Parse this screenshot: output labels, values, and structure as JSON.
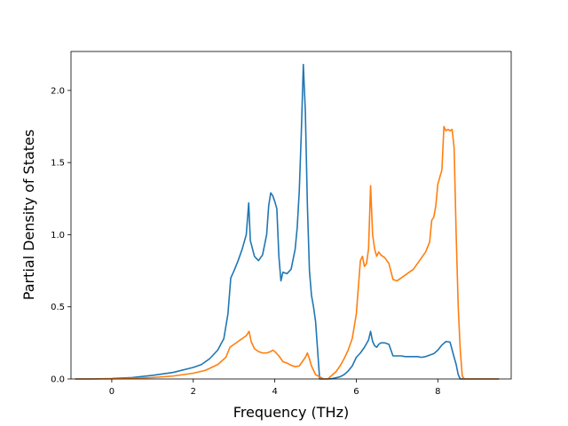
{
  "chart_data": {
    "type": "line",
    "title": "",
    "xlabel": "Frequency (THz)",
    "ylabel": "Partial Density of States",
    "xlim": [
      -1.0,
      9.8
    ],
    "ylim": [
      0.0,
      2.27
    ],
    "xticks": [
      0,
      2,
      4,
      6,
      8
    ],
    "xtick_labels": [
      "0",
      "2",
      "4",
      "6",
      "8"
    ],
    "yticks": [
      0.0,
      0.5,
      1.0,
      1.5,
      2.0
    ],
    "ytick_labels": [
      "0.0",
      "0.5",
      "1.0",
      "1.5",
      "2.0"
    ],
    "grid": false,
    "series": [
      {
        "color": "#1f77b4",
        "x": [
          -0.9,
          -0.5,
          0.0,
          0.5,
          1.0,
          1.5,
          2.0,
          2.2,
          2.4,
          2.6,
          2.75,
          2.85,
          2.92,
          3.0,
          3.1,
          3.2,
          3.3,
          3.36,
          3.4,
          3.5,
          3.6,
          3.7,
          3.8,
          3.85,
          3.9,
          3.95,
          4.0,
          4.05,
          4.1,
          4.15,
          4.2,
          4.3,
          4.4,
          4.5,
          4.55,
          4.6,
          4.65,
          4.7,
          4.75,
          4.8,
          4.85,
          4.9,
          4.95,
          5.0,
          5.1,
          5.2,
          5.24,
          5.3,
          5.4,
          5.5,
          5.6,
          5.7,
          5.8,
          5.9,
          6.0,
          6.1,
          6.2,
          6.3,
          6.35,
          6.4,
          6.45,
          6.5,
          6.55,
          6.6,
          6.7,
          6.8,
          6.9,
          7.0,
          7.05,
          7.1,
          7.2,
          7.3,
          7.4,
          7.5,
          7.6,
          7.7,
          7.8,
          7.9,
          8.0,
          8.1,
          8.2,
          8.3,
          8.4,
          8.45,
          8.5,
          8.55,
          8.6,
          8.7,
          9.0,
          9.5
        ],
        "y": [
          0.0,
          0.0,
          0.003,
          0.01,
          0.025,
          0.045,
          0.08,
          0.1,
          0.14,
          0.2,
          0.28,
          0.45,
          0.7,
          0.75,
          0.82,
          0.9,
          1.0,
          1.22,
          0.96,
          0.85,
          0.82,
          0.86,
          1.0,
          1.2,
          1.29,
          1.27,
          1.23,
          1.18,
          0.85,
          0.68,
          0.74,
          0.73,
          0.76,
          0.9,
          1.05,
          1.3,
          1.7,
          2.18,
          1.85,
          1.2,
          0.75,
          0.58,
          0.5,
          0.4,
          0.0,
          0.0,
          0.0,
          0.0,
          0.002,
          0.008,
          0.015,
          0.03,
          0.055,
          0.09,
          0.15,
          0.18,
          0.22,
          0.27,
          0.33,
          0.26,
          0.23,
          0.22,
          0.24,
          0.25,
          0.25,
          0.24,
          0.16,
          0.16,
          0.16,
          0.16,
          0.155,
          0.155,
          0.155,
          0.155,
          0.15,
          0.155,
          0.165,
          0.175,
          0.2,
          0.235,
          0.26,
          0.255,
          0.15,
          0.1,
          0.03,
          0.0,
          0.0,
          0.0,
          0.0,
          0.0
        ]
      },
      {
        "color": "#ff7f0e",
        "x": [
          -0.9,
          -0.5,
          0.0,
          0.5,
          1.0,
          1.5,
          2.0,
          2.3,
          2.6,
          2.8,
          2.9,
          3.0,
          3.1,
          3.2,
          3.3,
          3.37,
          3.42,
          3.5,
          3.6,
          3.7,
          3.8,
          3.9,
          3.95,
          4.0,
          4.1,
          4.2,
          4.3,
          4.4,
          4.5,
          4.6,
          4.7,
          4.75,
          4.8,
          4.85,
          4.9,
          5.0,
          5.2,
          5.3,
          5.5,
          5.6,
          5.7,
          5.8,
          5.9,
          6.0,
          6.1,
          6.15,
          6.2,
          6.25,
          6.3,
          6.35,
          6.4,
          6.45,
          6.5,
          6.55,
          6.6,
          6.65,
          6.7,
          6.8,
          6.9,
          7.0,
          7.05,
          7.1,
          7.2,
          7.3,
          7.4,
          7.5,
          7.6,
          7.7,
          7.8,
          7.85,
          7.9,
          7.95,
          8.0,
          8.1,
          8.15,
          8.2,
          8.25,
          8.3,
          8.35,
          8.4,
          8.45,
          8.5,
          8.55,
          8.6,
          8.65,
          9.0,
          9.5
        ],
        "y": [
          0.0,
          0.0,
          0.001,
          0.004,
          0.01,
          0.02,
          0.04,
          0.06,
          0.1,
          0.15,
          0.22,
          0.24,
          0.26,
          0.28,
          0.3,
          0.33,
          0.26,
          0.21,
          0.19,
          0.18,
          0.18,
          0.19,
          0.2,
          0.19,
          0.16,
          0.12,
          0.11,
          0.095,
          0.085,
          0.09,
          0.13,
          0.15,
          0.18,
          0.14,
          0.09,
          0.03,
          0.0,
          0.0,
          0.05,
          0.09,
          0.14,
          0.2,
          0.28,
          0.45,
          0.82,
          0.85,
          0.78,
          0.8,
          0.9,
          1.34,
          1.0,
          0.9,
          0.85,
          0.88,
          0.86,
          0.85,
          0.84,
          0.8,
          0.69,
          0.68,
          0.69,
          0.7,
          0.72,
          0.74,
          0.76,
          0.8,
          0.84,
          0.88,
          0.95,
          1.1,
          1.12,
          1.2,
          1.35,
          1.45,
          1.75,
          1.72,
          1.73,
          1.72,
          1.73,
          1.6,
          1.0,
          0.5,
          0.2,
          0.02,
          0.0,
          0.0,
          0.0
        ]
      }
    ]
  }
}
